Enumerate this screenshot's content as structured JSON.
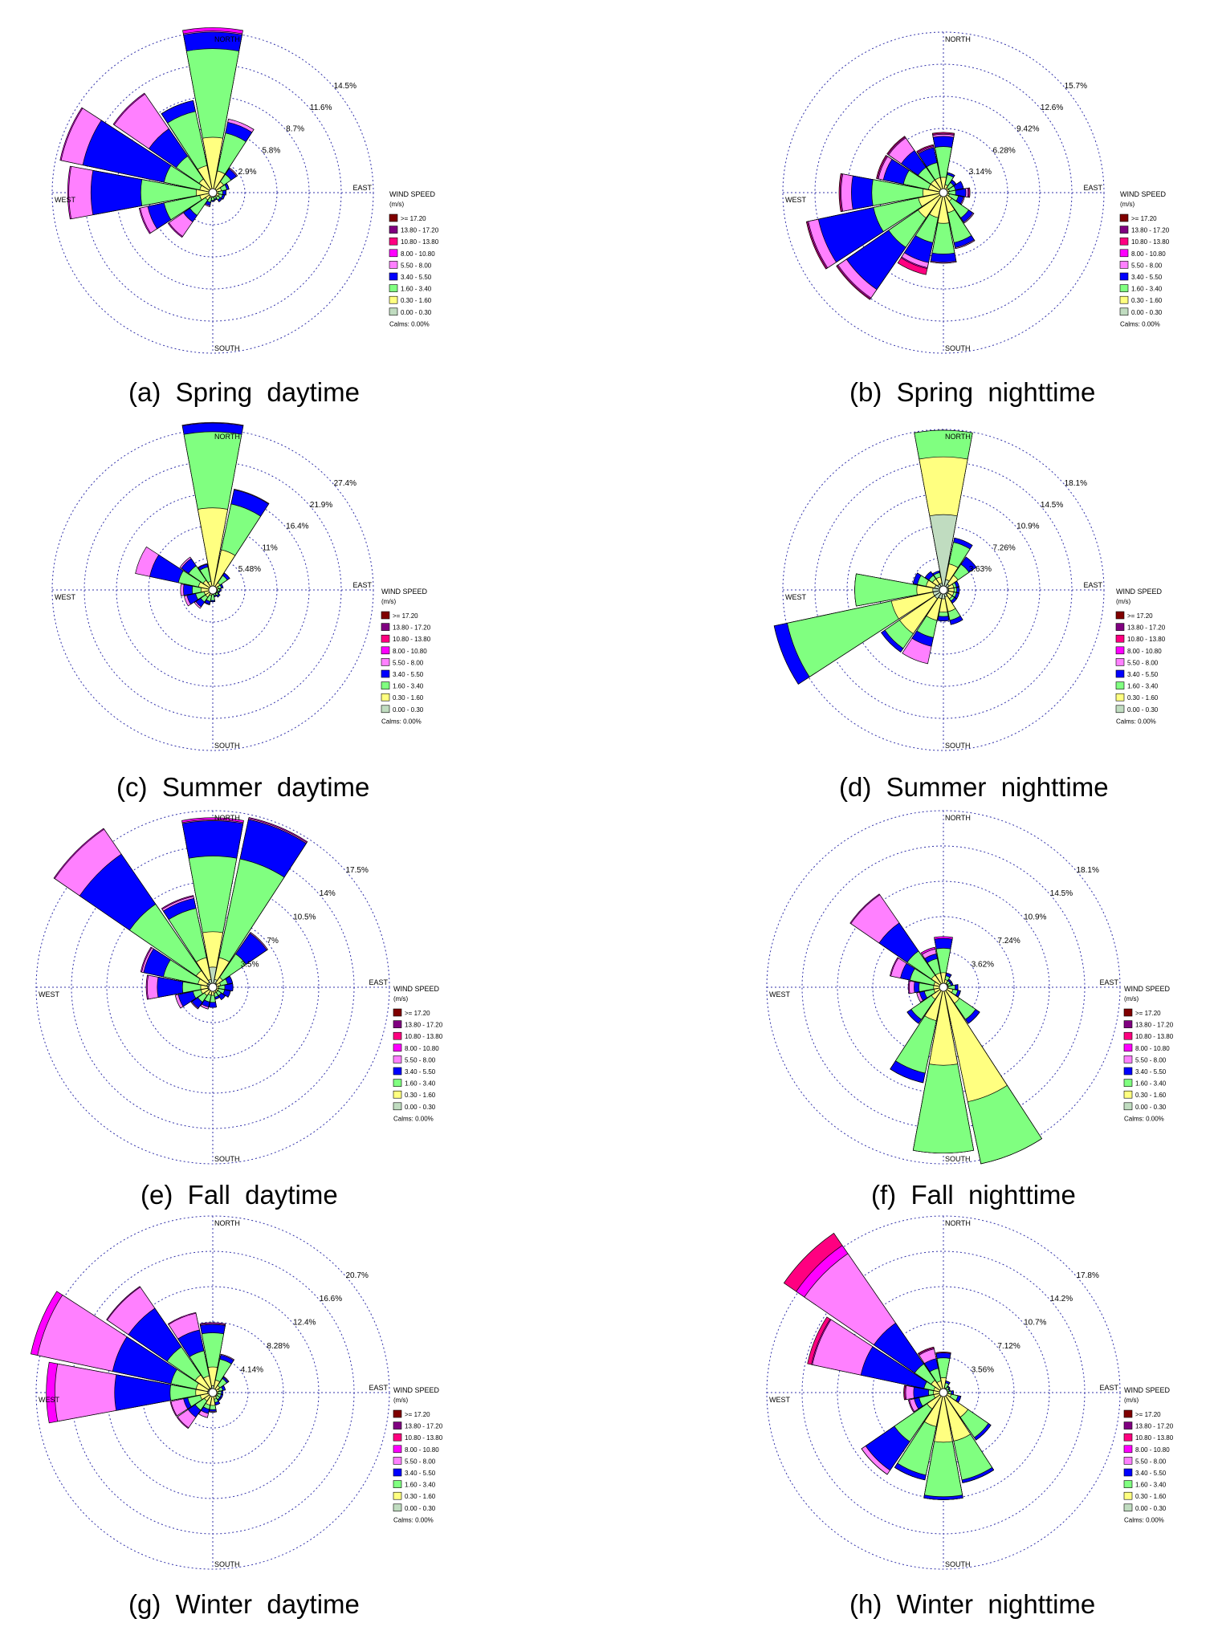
{
  "figure": {
    "speed_bins": {
      "title": "WIND SPEED",
      "unit": "(m/s)",
      "calms": "Calms: 0.00%",
      "bins": [
        {
          "label": ">= 17.20",
          "color": "#800000"
        },
        {
          "label": "13.80 - 17.20",
          "color": "#800080"
        },
        {
          "label": "10.80 - 13.80",
          "color": "#ff0080"
        },
        {
          "label": "8.00 - 10.80",
          "color": "#ff00ff"
        },
        {
          "label": "5.50 - 8.00",
          "color": "#ff80ff"
        },
        {
          "label": "3.40 - 5.50",
          "color": "#0000ff"
        },
        {
          "label": "1.60 - 3.40",
          "color": "#80ff80"
        },
        {
          "label": "0.30 - 1.60",
          "color": "#ffff80"
        },
        {
          "label": "0.00 - 0.30",
          "color": "#c0dcc0"
        }
      ]
    },
    "directions": {
      "north": "NORTH",
      "south": "SOUTH",
      "east": "EAST",
      "west": "WEST"
    }
  },
  "chart_data": [
    {
      "type": "wind-rose",
      "caption": "(a)  Spring  daytime",
      "ring_labels": [
        "2.9%",
        "5.8%",
        "8.7%",
        "11.6%",
        "14.5%"
      ],
      "rmax": 14.5,
      "directions_deg": [
        0,
        22.5,
        45,
        67.5,
        90,
        112.5,
        135,
        157.5,
        180,
        202.5,
        225,
        247.5,
        270,
        292.5,
        315,
        337.5
      ],
      "cumulative_pct_by_bin": {
        "0.30 - 1.60": [
          5.0,
          2.0,
          1.2,
          0.8,
          0.5,
          0.6,
          0.5,
          0.4,
          0.4,
          0.5,
          0.8,
          1.2,
          1.5,
          1.2,
          1.5,
          2.5
        ],
        "1.60 - 3.40": [
          13.0,
          5.5,
          2.0,
          1.3,
          0.9,
          0.9,
          0.8,
          0.6,
          0.7,
          0.9,
          2.5,
          4.5,
          6.5,
          4.5,
          4.0,
          7.5
        ],
        "3.40 - 5.50": [
          14.5,
          6.5,
          2.6,
          1.5,
          1.2,
          1.1,
          1.0,
          0.7,
          0.8,
          1.2,
          3.2,
          6.0,
          11.0,
          12.0,
          7.0,
          8.5
        ],
        "5.50 - 8.00": [
          14.6,
          6.8,
          2.7,
          1.5,
          1.2,
          1.1,
          1.0,
          0.7,
          0.8,
          1.3,
          4.8,
          6.7,
          13.0,
          14.0,
          10.8,
          8.5
        ],
        "8.00 - 10.80": [
          14.9,
          6.8,
          2.7,
          1.5,
          1.2,
          1.1,
          1.0,
          0.7,
          0.8,
          1.3,
          4.9,
          6.8,
          13.1,
          14.1,
          10.9,
          8.5
        ]
      }
    },
    {
      "type": "wind-rose",
      "caption": "(b)  Spring  nighttime",
      "ring_labels": [
        "3.14%",
        "6.28%",
        "9.42%",
        "12.6%",
        "15.7%"
      ],
      "rmax": 15.7,
      "directions_deg": [
        0,
        22.5,
        45,
        67.5,
        90,
        112.5,
        135,
        157.5,
        180,
        202.5,
        225,
        247.5,
        270,
        292.5,
        315,
        337.5
      ],
      "cumulative_pct_by_bin": {
        "0.30 - 1.60": [
          1.5,
          0.8,
          0.6,
          0.6,
          0.5,
          0.6,
          1.0,
          2.0,
          3.0,
          2.5,
          3.0,
          2.5,
          2.0,
          1.5,
          1.5,
          1.5
        ],
        "1.60 - 3.40": [
          4.5,
          1.8,
          1.2,
          1.2,
          1.2,
          1.5,
          3.0,
          5.0,
          6.0,
          5.0,
          6.5,
          7.0,
          7.0,
          4.0,
          3.0,
          3.0
        ],
        "3.40 - 5.50": [
          5.5,
          2.0,
          1.5,
          2.0,
          2.2,
          2.0,
          3.5,
          5.5,
          6.8,
          7.0,
          11.5,
          12.5,
          9.0,
          6.0,
          5.0,
          4.5
        ],
        "5.50 - 8.00": [
          5.7,
          2.0,
          1.5,
          2.0,
          2.4,
          2.1,
          3.6,
          5.6,
          6.9,
          7.5,
          12.5,
          13.5,
          10.0,
          6.5,
          6.5,
          4.6
        ],
        "8.00 - 10.80": [
          5.8,
          2.0,
          1.5,
          2.0,
          2.5,
          2.1,
          3.6,
          5.6,
          6.9,
          7.6,
          12.6,
          13.6,
          10.1,
          6.6,
          6.6,
          4.7
        ],
        "10.80 - 13.80": [
          5.9,
          2.0,
          1.5,
          2.0,
          2.6,
          2.1,
          3.6,
          5.6,
          6.9,
          8.2,
          12.7,
          13.7,
          10.2,
          6.7,
          6.7,
          4.8
        ]
      }
    },
    {
      "type": "wind-rose",
      "caption": "(c)  Summer  daytime",
      "ring_labels": [
        "5.48%",
        "11%",
        "16.4%",
        "21.9%",
        "27.4%"
      ],
      "rmax": 27.4,
      "directions_deg": [
        0,
        22.5,
        45,
        67.5,
        90,
        112.5,
        135,
        157.5,
        180,
        202.5,
        225,
        247.5,
        270,
        292.5,
        315,
        337.5
      ],
      "cumulative_pct_by_bin": {
        "0.30 - 1.60": [
          14.0,
          7.0,
          1.5,
          1.0,
          0.8,
          0.8,
          0.8,
          0.6,
          0.8,
          1.0,
          1.5,
          1.5,
          2.0,
          2.5,
          2.0,
          1.5
        ],
        "1.60 - 3.40": [
          27.0,
          15.0,
          3.0,
          1.5,
          1.2,
          1.0,
          1.2,
          1.0,
          1.8,
          2.0,
          2.5,
          3.0,
          3.5,
          6.0,
          5.0,
          4.0
        ],
        "3.40 - 5.50": [
          28.5,
          17.5,
          3.5,
          1.8,
          1.4,
          1.2,
          1.5,
          1.2,
          2.0,
          2.5,
          3.5,
          4.5,
          5.0,
          11.0,
          6.5,
          4.5
        ],
        "5.50 - 8.00": [
          28.6,
          17.6,
          3.5,
          1.8,
          1.4,
          1.2,
          1.5,
          1.2,
          2.0,
          2.6,
          3.8,
          5.0,
          5.5,
          13.5,
          6.8,
          4.6
        ]
      }
    },
    {
      "type": "wind-rose",
      "caption": "(d)  Summer  nighttime",
      "ring_labels": [
        "3.63%",
        "7.26%",
        "10.9%",
        "14.5%",
        "18.1%"
      ],
      "rmax": 18.1,
      "directions_deg": [
        0,
        22.5,
        45,
        67.5,
        90,
        112.5,
        135,
        157.5,
        180,
        202.5,
        225,
        247.5,
        270,
        292.5,
        315,
        337.5
      ],
      "cumulative_pct_by_bin": {
        "0.00 - 0.30": [
          8.5,
          1.2,
          0.8,
          0.6,
          0.6,
          0.6,
          0.6,
          0.8,
          1.0,
          1.0,
          1.2,
          1.2,
          1.2,
          1.0,
          0.8,
          0.8
        ],
        "0.30 - 1.60": [
          15.0,
          3.0,
          2.0,
          1.2,
          1.2,
          1.2,
          1.2,
          2.5,
          2.5,
          3.5,
          6.0,
          6.0,
          3.0,
          2.0,
          1.5,
          1.5
        ],
        "1.60 - 3.40": [
          18.0,
          5.5,
          3.5,
          1.5,
          1.5,
          1.5,
          1.5,
          3.5,
          3.0,
          5.5,
          8.0,
          18.0,
          10.0,
          3.0,
          2.0,
          2.0
        ],
        "3.40 - 5.50": [
          18.0,
          6.0,
          4.5,
          1.8,
          1.8,
          1.8,
          1.8,
          4.0,
          3.5,
          6.5,
          8.5,
          19.5,
          10.0,
          3.5,
          2.5,
          2.2
        ],
        "5.50 - 8.00": [
          18.0,
          6.0,
          4.5,
          1.8,
          1.8,
          1.8,
          1.8,
          4.0,
          3.5,
          8.5,
          8.5,
          19.5,
          10.0,
          3.5,
          2.5,
          2.2
        ]
      }
    },
    {
      "type": "wind-rose",
      "caption": "(e)  Fall  daytime",
      "ring_labels": [
        "3.5%",
        "7%",
        "10.5%",
        "14%",
        "17.5%"
      ],
      "rmax": 17.5,
      "directions_deg": [
        0,
        22.5,
        45,
        67.5,
        90,
        112.5,
        135,
        157.5,
        180,
        202.5,
        225,
        247.5,
        270,
        292.5,
        315,
        337.5
      ],
      "cumulative_pct_by_bin": {
        "0.00 - 0.30": [
          2.0,
          0.8,
          0.5,
          0.4,
          0.3,
          0.3,
          0.3,
          0.3,
          0.3,
          0.3,
          0.4,
          0.5,
          0.5,
          0.6,
          0.6,
          0.8
        ],
        "0.30 - 1.60": [
          5.5,
          3.0,
          1.2,
          0.8,
          0.6,
          0.6,
          0.6,
          0.6,
          0.8,
          0.8,
          1.0,
          1.2,
          1.2,
          1.5,
          2.0,
          3.0
        ],
        "1.60 - 3.40": [
          13.0,
          13.0,
          4.0,
          1.5,
          1.2,
          1.2,
          1.0,
          1.0,
          1.5,
          1.5,
          1.8,
          2.0,
          3.0,
          5.0,
          10.0,
          8.0
        ],
        "3.40 - 5.50": [
          16.5,
          17.0,
          6.5,
          2.0,
          2.0,
          1.8,
          1.5,
          1.2,
          2.0,
          2.0,
          2.5,
          3.5,
          5.5,
          7.0,
          16.0,
          9.0
        ],
        "5.50 - 8.00": [
          16.6,
          17.1,
          6.6,
          2.0,
          2.0,
          1.8,
          1.5,
          1.2,
          2.0,
          2.2,
          2.6,
          3.8,
          6.5,
          7.2,
          19.0,
          9.2
        ],
        "8.00 - 10.80": [
          16.8,
          17.2,
          6.6,
          2.0,
          2.0,
          1.8,
          1.5,
          1.2,
          2.0,
          2.2,
          2.6,
          3.8,
          6.6,
          7.3,
          19.1,
          9.3
        ]
      }
    },
    {
      "type": "wind-rose",
      "caption": "(f)  Fall  nighttime",
      "ring_labels": [
        "3.62%",
        "7.24%",
        "10.9%",
        "14.5%",
        "18.1%"
      ],
      "rmax": 18.1,
      "directions_deg": [
        0,
        22.5,
        45,
        67.5,
        90,
        112.5,
        135,
        157.5,
        180,
        202.5,
        225,
        247.5,
        270,
        292.5,
        315,
        337.5
      ],
      "cumulative_pct_by_bin": {
        "0.30 - 1.60": [
          1.5,
          0.8,
          0.5,
          0.5,
          0.5,
          1.0,
          2.0,
          12.0,
          8.0,
          3.5,
          1.5,
          1.0,
          1.0,
          1.0,
          1.5,
          1.5
        ],
        "1.60 - 3.40": [
          4.0,
          1.2,
          0.8,
          0.8,
          1.2,
          1.5,
          4.0,
          18.5,
          17.0,
          9.0,
          4.0,
          2.0,
          2.5,
          3.5,
          4.5,
          3.0
        ],
        "3.40 - 5.50": [
          5.0,
          1.5,
          1.0,
          1.0,
          1.5,
          1.8,
          4.5,
          18.5,
          17.0,
          10.0,
          4.5,
          2.5,
          3.0,
          4.5,
          8.0,
          3.5
        ],
        "5.50 - 8.00": [
          5.0,
          1.5,
          1.0,
          1.0,
          1.5,
          1.8,
          4.5,
          18.5,
          17.0,
          10.0,
          4.5,
          2.8,
          3.5,
          5.5,
          11.5,
          4.0
        ],
        "8.00 - 10.80": [
          5.2,
          1.5,
          1.0,
          1.0,
          1.5,
          1.8,
          4.5,
          18.5,
          17.0,
          10.0,
          4.5,
          2.8,
          3.6,
          5.6,
          11.6,
          4.2
        ]
      }
    },
    {
      "type": "wind-rose",
      "caption": "(g)  Winter  daytime",
      "ring_labels": [
        "4.14%",
        "8.28%",
        "12.4%",
        "16.6%",
        "20.7%"
      ],
      "rmax": 20.7,
      "directions_deg": [
        0,
        22.5,
        45,
        67.5,
        90,
        112.5,
        135,
        157.5,
        180,
        202.5,
        225,
        247.5,
        270,
        292.5,
        315,
        337.5
      ],
      "cumulative_pct_by_bin": {
        "0.00 - 0.30": [
          0.8,
          0.4,
          0.3,
          0.3,
          0.3,
          0.3,
          0.3,
          0.3,
          0.4,
          0.4,
          0.4,
          0.5,
          0.6,
          0.6,
          0.6,
          0.6
        ],
        "0.30 - 1.60": [
          3.0,
          1.5,
          1.0,
          0.8,
          0.6,
          0.6,
          0.6,
          0.8,
          1.5,
          1.5,
          1.2,
          1.5,
          2.0,
          2.0,
          2.5,
          2.0
        ],
        "1.60 - 3.40": [
          7.0,
          4.0,
          2.0,
          1.2,
          1.0,
          1.0,
          1.0,
          1.2,
          2.0,
          2.0,
          2.5,
          3.0,
          5.0,
          5.0,
          6.5,
          5.0
        ],
        "3.40 - 5.50": [
          8.0,
          4.5,
          2.2,
          1.5,
          1.2,
          1.2,
          1.2,
          1.5,
          2.2,
          2.5,
          3.5,
          3.5,
          11.5,
          12.0,
          12.0,
          7.5
        ],
        "5.50 - 8.00": [
          8.1,
          4.6,
          2.3,
          1.5,
          1.2,
          1.2,
          1.2,
          1.5,
          2.3,
          3.0,
          5.0,
          5.0,
          18.5,
          21.0,
          15.0,
          9.5
        ],
        "8.00 - 10.80": [
          8.2,
          4.6,
          2.3,
          1.5,
          1.2,
          1.2,
          1.2,
          1.5,
          2.3,
          3.0,
          5.1,
          5.1,
          19.5,
          21.8,
          15.1,
          9.6
        ]
      }
    },
    {
      "type": "wind-rose",
      "caption": "(h)  Winter  nighttime",
      "ring_labels": [
        "3.56%",
        "7.12%",
        "10.7%",
        "14.2%",
        "17.8%"
      ],
      "rmax": 17.8,
      "directions_deg": [
        0,
        22.5,
        45,
        67.5,
        90,
        112.5,
        135,
        157.5,
        180,
        202.5,
        225,
        247.5,
        270,
        292.5,
        315,
        337.5
      ],
      "cumulative_pct_by_bin": {
        "0.30 - 1.60": [
          1.5,
          0.5,
          0.4,
          0.4,
          0.5,
          0.8,
          3.0,
          5.0,
          5.0,
          3.5,
          2.0,
          1.0,
          1.0,
          1.0,
          1.5,
          1.2
        ],
        "1.60 - 3.40": [
          3.5,
          1.0,
          0.7,
          0.6,
          0.8,
          1.5,
          5.5,
          9.0,
          10.5,
          8.5,
          6.0,
          2.5,
          1.5,
          2.0,
          3.5,
          2.5
        ],
        "3.40 - 5.50": [
          4.0,
          1.2,
          0.8,
          0.7,
          1.0,
          1.8,
          5.8,
          9.3,
          10.8,
          9.0,
          9.5,
          3.0,
          3.0,
          8.5,
          8.5,
          3.5
        ],
        "5.50 - 8.00": [
          4.0,
          1.2,
          0.8,
          0.7,
          1.0,
          1.8,
          5.8,
          9.3,
          10.8,
          9.0,
          10.0,
          3.5,
          3.8,
          13.5,
          17.0,
          4.5
        ],
        "8.00 - 10.80": [
          4.0,
          1.2,
          0.8,
          0.7,
          1.0,
          1.8,
          5.8,
          9.3,
          10.8,
          9.0,
          10.0,
          3.6,
          3.9,
          13.6,
          18.0,
          4.6
        ],
        "10.80 - 13.80": [
          4.1,
          1.2,
          0.8,
          0.7,
          1.0,
          1.8,
          5.8,
          9.3,
          10.8,
          9.0,
          10.0,
          3.6,
          4.0,
          14.0,
          19.5,
          4.7
        ]
      }
    }
  ]
}
